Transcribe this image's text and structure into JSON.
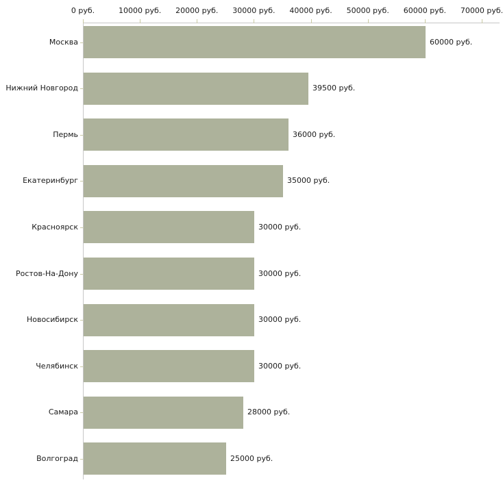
{
  "chart_data": {
    "type": "bar",
    "orientation": "horizontal",
    "title": "",
    "xlabel": "",
    "ylabel": "",
    "categories": [
      "Москва",
      "Нижний Новгород",
      "Пермь",
      "Екатеринбург",
      "Красноярск",
      "Ростов-На-Дону",
      "Новосибирск",
      "Челябинск",
      "Самара",
      "Волгоград"
    ],
    "values": [
      60000,
      39500,
      36000,
      35000,
      30000,
      30000,
      30000,
      30000,
      28000,
      25000
    ],
    "value_labels": [
      "60000 руб.",
      "39500 руб.",
      "36000 руб.",
      "35000 руб.",
      "30000 руб.",
      "30000 руб.",
      "30000 руб.",
      "30000 руб.",
      "28000 руб.",
      "25000 руб."
    ],
    "x_axis": {
      "position": "top",
      "min": 0,
      "max": 70000,
      "tick_values": [
        0,
        10000,
        20000,
        30000,
        40000,
        50000,
        60000,
        70000
      ],
      "tick_labels": [
        "0 руб.",
        "10000 руб.",
        "20000 руб.",
        "30000 руб.",
        "40000 руб.",
        "50000 руб.",
        "60000 руб.",
        "70000 руб."
      ]
    },
    "legend": null,
    "grid": false,
    "colors": {
      "bar": "#adb29b",
      "axis_line": "#c6c6c6",
      "tick": "#c9c9a3",
      "text": "#1a1a1a",
      "background": "#ffffff"
    }
  }
}
